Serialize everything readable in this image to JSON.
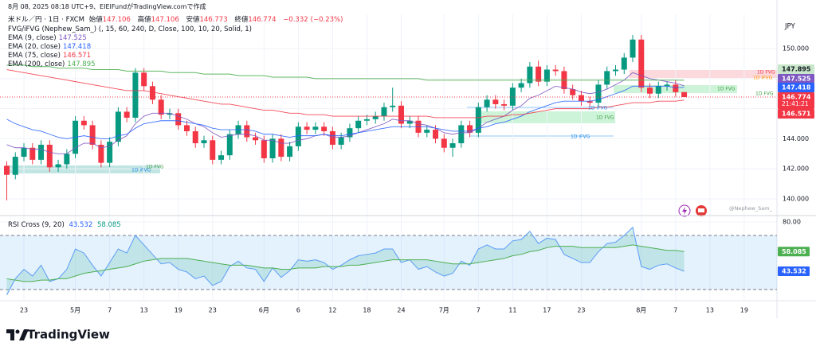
{
  "header": {
    "created": "8月 08, 2025 08:18 UTC+9、EIEIFundがTradingView.comで作成",
    "symbol": "米ドル／円 · 1日 · FXCM",
    "open_label": "始値",
    "high_label": "高値",
    "low_label": "安値",
    "close_label": "終値",
    "change": {
      "value": -0.332,
      "label": "−0.332"
    },
    "change_pct": {
      "value": -0.23,
      "label": "(−0.23%)"
    },
    "fvg_indicator": "FVG/iFVG (Nephew_Sam_) (, 15, 60, 240, D, Close, 100, 10, 20, Solid, 1)",
    "currency": "JPY"
  },
  "chart_data": {
    "type": "candlestick",
    "up_color": "#089981",
    "down_color": "#f23645",
    "candles": [
      [
        142.2,
        142.5,
        139.9,
        141.6
      ],
      [
        141.6,
        143.1,
        141.3,
        142.8
      ],
      [
        142.8,
        143.7,
        142.5,
        143.4
      ],
      [
        143.4,
        143.7,
        142.3,
        142.6
      ],
      [
        142.6,
        143.9,
        142.3,
        143.6
      ],
      [
        143.6,
        143.9,
        141.8,
        142.1
      ],
      [
        142.1,
        142.6,
        141.8,
        142.3
      ],
      [
        142.3,
        143.3,
        142.0,
        143.0
      ],
      [
        143.0,
        145.5,
        142.7,
        145.2
      ],
      [
        145.2,
        145.5,
        144.6,
        144.9
      ],
      [
        144.9,
        145.2,
        143.3,
        143.6
      ],
      [
        143.6,
        143.9,
        142.1,
        142.4
      ],
      [
        142.4,
        144.1,
        142.1,
        143.8
      ],
      [
        143.8,
        146.1,
        143.5,
        145.8
      ],
      [
        145.8,
        146.1,
        145.1,
        145.4
      ],
      [
        145.4,
        148.7,
        145.1,
        148.4
      ],
      [
        148.4,
        148.7,
        147.2,
        147.5
      ],
      [
        147.5,
        147.8,
        146.3,
        146.6
      ],
      [
        146.6,
        146.9,
        145.3,
        145.6
      ],
      [
        145.6,
        146.0,
        145.3,
        145.7
      ],
      [
        145.7,
        146.0,
        144.6,
        144.9
      ],
      [
        144.9,
        145.2,
        144.2,
        144.5
      ],
      [
        144.5,
        144.8,
        143.4,
        143.7
      ],
      [
        143.7,
        144.2,
        143.4,
        143.9
      ],
      [
        143.9,
        144.2,
        142.3,
        142.6
      ],
      [
        142.6,
        143.2,
        142.3,
        142.9
      ],
      [
        142.9,
        144.6,
        142.6,
        144.3
      ],
      [
        144.3,
        145.2,
        144.0,
        144.9
      ],
      [
        144.9,
        145.2,
        143.8,
        144.1
      ],
      [
        144.1,
        144.4,
        143.6,
        143.9
      ],
      [
        143.9,
        144.2,
        142.4,
        142.7
      ],
      [
        142.7,
        144.3,
        142.4,
        144.0
      ],
      [
        144.0,
        144.3,
        142.5,
        142.8
      ],
      [
        142.8,
        143.8,
        142.5,
        143.5
      ],
      [
        143.5,
        145.1,
        143.2,
        144.8
      ],
      [
        144.8,
        145.1,
        144.3,
        144.6
      ],
      [
        144.6,
        145.1,
        144.3,
        144.8
      ],
      [
        144.8,
        145.1,
        144.2,
        144.5
      ],
      [
        144.5,
        144.8,
        143.3,
        143.6
      ],
      [
        143.6,
        144.4,
        143.3,
        144.1
      ],
      [
        144.1,
        145.0,
        143.8,
        144.7
      ],
      [
        144.7,
        145.5,
        144.4,
        145.2
      ],
      [
        145.2,
        145.6,
        144.9,
        145.3
      ],
      [
        145.3,
        145.8,
        145.0,
        145.5
      ],
      [
        145.5,
        146.4,
        145.2,
        146.1
      ],
      [
        146.1,
        147.4,
        145.8,
        146.2
      ],
      [
        146.2,
        146.5,
        144.7,
        145.0
      ],
      [
        145.0,
        145.5,
        144.7,
        145.2
      ],
      [
        145.2,
        145.5,
        144.1,
        144.4
      ],
      [
        144.4,
        144.9,
        144.1,
        144.6
      ],
      [
        144.6,
        144.9,
        143.7,
        144.0
      ],
      [
        144.0,
        144.3,
        143.1,
        143.4
      ],
      [
        143.4,
        144.0,
        142.8,
        143.7
      ],
      [
        143.7,
        145.2,
        143.4,
        144.9
      ],
      [
        144.9,
        145.2,
        144.1,
        144.4
      ],
      [
        144.4,
        146.4,
        144.1,
        146.1
      ],
      [
        146.1,
        146.9,
        145.8,
        146.6
      ],
      [
        146.6,
        146.9,
        146.0,
        146.3
      ],
      [
        146.3,
        146.6,
        145.9,
        146.2
      ],
      [
        146.2,
        147.7,
        145.9,
        147.4
      ],
      [
        147.4,
        148.0,
        147.1,
        147.7
      ],
      [
        147.7,
        149.1,
        147.4,
        148.8
      ],
      [
        148.8,
        149.2,
        147.5,
        147.8
      ],
      [
        147.8,
        148.9,
        147.5,
        148.6
      ],
      [
        148.6,
        148.9,
        148.2,
        148.5
      ],
      [
        148.5,
        148.8,
        147.0,
        147.3
      ],
      [
        147.3,
        147.6,
        146.6,
        146.9
      ],
      [
        146.9,
        147.2,
        146.2,
        146.5
      ],
      [
        146.5,
        146.8,
        146.1,
        146.4
      ],
      [
        146.4,
        147.9,
        146.1,
        147.6
      ],
      [
        147.6,
        148.8,
        147.3,
        148.5
      ],
      [
        148.5,
        148.9,
        148.2,
        148.6
      ],
      [
        148.6,
        149.7,
        148.3,
        149.4
      ],
      [
        149.4,
        150.9,
        149.1,
        150.6
      ],
      [
        150.6,
        150.9,
        147.1,
        147.4
      ],
      [
        147.4,
        147.7,
        146.7,
        147.0
      ],
      [
        147.0,
        147.8,
        146.7,
        147.5
      ],
      [
        147.5,
        147.8,
        147.2,
        147.6
      ],
      [
        147.6,
        147.9,
        146.8,
        147.1
      ],
      [
        147.106,
        147.106,
        146.773,
        146.774
      ]
    ],
    "ema": [
      {
        "name": "EMA (9, close)",
        "color": "#7e57c2",
        "values": [
          143.6,
          143.4,
          143.4,
          143.3,
          143.3,
          143.1,
          143.0,
          143.0,
          143.4,
          143.7,
          143.7,
          143.4,
          143.5,
          143.9,
          144.2,
          145.0,
          145.5,
          145.7,
          145.7,
          145.7,
          145.5,
          145.3,
          145.0,
          144.8,
          144.4,
          144.1,
          144.2,
          144.3,
          144.3,
          144.2,
          143.9,
          143.9,
          143.7,
          143.7,
          143.9,
          144.0,
          144.2,
          144.3,
          144.1,
          144.1,
          144.2,
          144.4,
          144.6,
          144.8,
          145.0,
          145.3,
          145.2,
          145.2,
          145.0,
          144.9,
          144.7,
          144.4,
          144.3,
          144.4,
          144.4,
          144.7,
          145.1,
          145.3,
          145.5,
          145.9,
          146.2,
          146.7,
          146.9,
          147.2,
          147.5,
          147.4,
          147.3,
          147.1,
          147.0,
          147.1,
          147.3,
          147.6,
          147.9,
          148.4,
          148.2,
          148.0,
          147.9,
          147.8,
          147.7,
          147.525
        ]
      },
      {
        "name": "EMA (20, close)",
        "color": "#2962ff",
        "values": [
          145.3,
          145.0,
          144.8,
          144.6,
          144.5,
          144.3,
          144.1,
          144.0,
          144.1,
          144.2,
          144.1,
          144.0,
          144.0,
          144.2,
          144.3,
          144.7,
          145.0,
          145.1,
          145.2,
          145.2,
          145.2,
          145.1,
          145.0,
          144.9,
          144.7,
          144.6,
          144.6,
          144.6,
          144.6,
          144.5,
          144.3,
          144.3,
          144.2,
          144.1,
          144.2,
          144.2,
          144.2,
          144.3,
          144.2,
          144.2,
          144.3,
          144.4,
          144.5,
          144.6,
          144.7,
          144.8,
          144.8,
          144.8,
          144.8,
          144.8,
          144.7,
          144.6,
          144.5,
          144.5,
          144.5,
          144.7,
          144.8,
          145.0,
          145.1,
          145.3,
          145.5,
          145.8,
          146.0,
          146.2,
          146.4,
          146.5,
          146.5,
          146.5,
          146.5,
          146.6,
          146.8,
          147.0,
          147.2,
          147.5,
          147.5,
          147.5,
          147.5,
          147.5,
          147.4,
          147.418
        ]
      },
      {
        "name": "EMA (75, close)",
        "color": "#f23645",
        "values": [
          148.6,
          148.5,
          148.4,
          148.3,
          148.2,
          148.1,
          148.0,
          147.9,
          147.8,
          147.7,
          147.6,
          147.5,
          147.4,
          147.3,
          147.2,
          147.2,
          147.2,
          147.1,
          147.0,
          146.9,
          146.8,
          146.7,
          146.6,
          146.5,
          146.4,
          146.3,
          146.3,
          146.2,
          146.1,
          146.0,
          145.9,
          145.9,
          145.8,
          145.7,
          145.7,
          145.6,
          145.6,
          145.6,
          145.5,
          145.5,
          145.5,
          145.5,
          145.5,
          145.5,
          145.5,
          145.5,
          145.5,
          145.5,
          145.5,
          145.5,
          145.4,
          145.4,
          145.4,
          145.4,
          145.4,
          145.4,
          145.5,
          145.5,
          145.5,
          145.6,
          145.6,
          145.7,
          145.8,
          145.9,
          146.0,
          146.0,
          146.0,
          146.0,
          146.0,
          146.1,
          146.1,
          146.2,
          146.3,
          146.4,
          146.4,
          146.4,
          146.5,
          146.5,
          146.5,
          146.571
        ]
      },
      {
        "name": "EMA (200, close)",
        "color": "#4caf50",
        "values": [
          148.9,
          148.9,
          148.9,
          148.8,
          148.8,
          148.8,
          148.7,
          148.7,
          148.7,
          148.7,
          148.6,
          148.6,
          148.6,
          148.6,
          148.5,
          148.5,
          148.5,
          148.5,
          148.5,
          148.4,
          148.4,
          148.4,
          148.4,
          148.3,
          148.3,
          148.3,
          148.3,
          148.2,
          148.2,
          148.2,
          148.2,
          148.1,
          148.1,
          148.1,
          148.1,
          148.1,
          148.0,
          148.0,
          148.0,
          148.0,
          148.0,
          148.0,
          148.0,
          148.0,
          148.0,
          148.0,
          148.0,
          148.0,
          148.0,
          147.9,
          147.9,
          147.9,
          147.9,
          147.9,
          147.9,
          147.9,
          147.9,
          147.9,
          147.9,
          147.9,
          147.9,
          147.9,
          147.9,
          147.9,
          147.9,
          147.9,
          147.9,
          147.9,
          147.9,
          147.9,
          147.9,
          147.9,
          147.9,
          147.9,
          147.9,
          147.9,
          147.9,
          147.9,
          147.9,
          147.895
        ]
      }
    ],
    "ylim": [
      138.94,
      152.28
    ],
    "yticks": [
      {
        "value": 150,
        "label": "150.000"
      },
      {
        "value": 148,
        "label": "148.000"
      },
      {
        "value": 146,
        "label": "146.000"
      },
      {
        "value": 144,
        "label": "144.000"
      },
      {
        "value": 142,
        "label": "142.000"
      },
      {
        "value": 140,
        "label": "140.000"
      }
    ],
    "xlim": [
      -0.79,
      89.82
    ],
    "xticks": [
      {
        "value": 2,
        "label": "23"
      },
      {
        "value": 8,
        "label": "5月"
      },
      {
        "value": 12,
        "label": "7"
      },
      {
        "value": 16,
        "label": "13"
      },
      {
        "value": 20,
        "label": "19"
      },
      {
        "value": 24,
        "label": "23"
      },
      {
        "value": 30,
        "label": "6月"
      },
      {
        "value": 34,
        "label": "6"
      },
      {
        "value": 38,
        "label": "12"
      },
      {
        "value": 42,
        "label": "18"
      },
      {
        "value": 46,
        "label": "24"
      },
      {
        "value": 51,
        "label": "7月"
      },
      {
        "value": 55,
        "label": "7"
      },
      {
        "value": 59,
        "label": "11"
      },
      {
        "value": 63,
        "label": "17"
      },
      {
        "value": 67,
        "label": "23"
      },
      {
        "value": 74,
        "label": "8月"
      },
      {
        "value": 78,
        "label": "7"
      },
      {
        "value": 82,
        "label": "13"
      },
      {
        "value": 86,
        "label": "19"
      }
    ],
    "last_price_time": "21:41:21",
    "annotations": [
      "1D iFVG",
      "1D FVG",
      "1D FVG",
      "1D iFVG",
      "1D FVG",
      "1D iFVG",
      "1D FVG",
      "1D FVG",
      "1D iFVG"
    ],
    "watermark": "@Nephew_Sam_"
  },
  "rsi": {
    "type": "line",
    "name": "RSI Cross (9, 20)",
    "series": [
      {
        "color": "#5b9cf6",
        "values": [
          26,
          38,
          45,
          40,
          48,
          36,
          38,
          45,
          60,
          57,
          48,
          40,
          50,
          60,
          57,
          70,
          63,
          56,
          49,
          50,
          45,
          43,
          38,
          40,
          33,
          36,
          47,
          51,
          46,
          45,
          36,
          46,
          39,
          44,
          52,
          51,
          52,
          50,
          45,
          48,
          52,
          55,
          56,
          57,
          60,
          60,
          50,
          52,
          45,
          47,
          43,
          40,
          42,
          51,
          48,
          60,
          63,
          60,
          60,
          66,
          67,
          73,
          64,
          68,
          67,
          56,
          53,
          50,
          50,
          58,
          64,
          65,
          70,
          76,
          47,
          45,
          48,
          49,
          46,
          43.532
        ]
      },
      {
        "color": "#4caf50",
        "values": [
          38,
          37,
          36,
          36,
          37,
          37,
          38,
          38,
          40,
          42,
          43,
          44,
          45,
          46,
          47,
          49,
          51,
          52,
          53,
          53,
          53,
          53,
          52,
          51,
          50,
          49,
          48,
          48,
          48,
          47,
          46,
          46,
          45,
          45,
          46,
          46,
          46,
          47,
          47,
          47,
          48,
          48,
          49,
          50,
          51,
          52,
          52,
          52,
          52,
          52,
          51,
          50,
          49,
          49,
          49,
          50,
          51,
          52,
          53,
          55,
          56,
          58,
          59,
          61,
          62,
          62,
          62,
          61,
          61,
          61,
          61,
          61,
          62,
          63,
          62,
          61,
          60,
          59,
          59,
          58.085
        ]
      }
    ],
    "bands": [
      70,
      30
    ],
    "ylim": [
      21.8,
      84.1
    ],
    "yticks": [
      {
        "value": 80,
        "label": "80.00"
      }
    ]
  },
  "brand": "TradingView"
}
